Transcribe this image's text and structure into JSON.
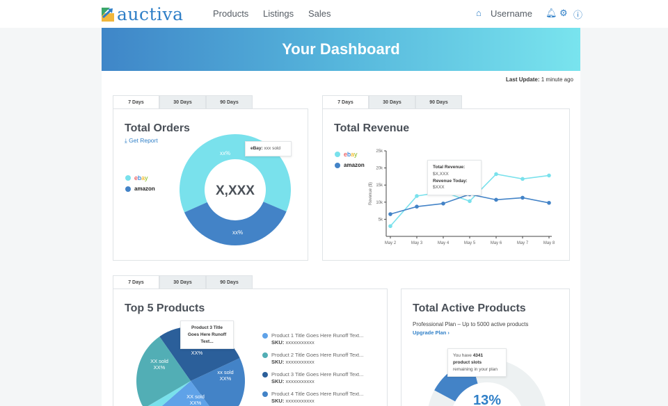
{
  "header": {
    "logo": "auctiva",
    "nav": [
      "Products",
      "Listings",
      "Sales"
    ],
    "username": "Username",
    "icons": [
      "home-icon",
      "bell-icon",
      "gear-icon",
      "help-icon"
    ]
  },
  "hero": {
    "title": "Your Dashboard"
  },
  "last_update": {
    "label": "Last Update:",
    "value": "1 minute ago"
  },
  "colors": {
    "ebay": "#79e1ec",
    "amazon": "#4383c7",
    "accent": "#2f7fc7"
  },
  "tabs": [
    "7 Days",
    "30 Days",
    "90 Days"
  ],
  "total_orders": {
    "title": "Total Orders",
    "report_link": "Get Report",
    "center_value": "X,XXX",
    "legend": [
      "ebay",
      "amazon"
    ],
    "slices": [
      {
        "name": "ebay",
        "label": "xx%",
        "color": "#79e1ec"
      },
      {
        "name": "amazon",
        "label": "xx%",
        "color": "#4383c7"
      }
    ],
    "tooltip": {
      "label": "eBay:",
      "value": "xxx sold"
    }
  },
  "total_revenue": {
    "title": "Total Revenue",
    "legend": [
      "ebay",
      "amazon"
    ],
    "tooltip": {
      "line1_label": "Total Revenue:",
      "line1_value": "$X,XXX",
      "line2_label": "Revenue Today:",
      "line2_value": "$XXX"
    }
  },
  "chart_data": {
    "type": "line",
    "ylabel": "Revenue ($)",
    "categories": [
      "May 2",
      "May 3",
      "May 4",
      "May 5",
      "May 6",
      "May 7",
      "May 8"
    ],
    "yticks": [
      "5k",
      "10k",
      "15k",
      "20k",
      "25k"
    ],
    "ylim": [
      0,
      25000
    ],
    "series": [
      {
        "name": "ebay",
        "color": "#79e1ec",
        "values": [
          3000,
          11800,
          13000,
          10300,
          18200,
          16800,
          17800
        ]
      },
      {
        "name": "amazon",
        "color": "#4383c7",
        "values": [
          6500,
          8700,
          9600,
          12300,
          10700,
          11300,
          9800
        ]
      }
    ]
  },
  "top5": {
    "title": "Top 5 Products",
    "tooltip": "Product 3 Title Goes Here Runoff Text...",
    "slices": [
      {
        "label1": "XX sold",
        "label2": "XX%",
        "color": "#2b5f9a"
      },
      {
        "label1": "xx sold",
        "label2": "XX%",
        "color": "#4383c7"
      },
      {
        "label1": "XX sold",
        "label2": "XX%",
        "color": "#5fa2e8"
      },
      {
        "label1": "",
        "label2": "",
        "color": "#79e1ec"
      },
      {
        "label1": "XX sold",
        "label2": "XX%",
        "color": "#52aeb5"
      }
    ],
    "products": [
      {
        "title": "Product 1 Title Goes Here Runoff Text...",
        "sku_label": "SKU:",
        "sku": "xxxxxxxxxxx",
        "color": "#5fa2e8"
      },
      {
        "title": "Product 2 Title Goes Here Runoff Text...",
        "sku_label": "SKU:",
        "sku": "xxxxxxxxxxx",
        "color": "#52aeb5"
      },
      {
        "title": "Product 3 Title Goes Here Runoff Text...",
        "sku_label": "SKU:",
        "sku": "xxxxxxxxxxx",
        "color": "#2b5f9a"
      },
      {
        "title": "Product 4 Title Goes Here Runoff Text...",
        "sku_label": "SKU:",
        "sku": "xxxxxxxxxxx",
        "color": "#4383c7"
      }
    ]
  },
  "active_products": {
    "title": "Total Active Products",
    "plan": "Professional Plan – Up to 5000 active products",
    "upgrade": "Upgrade Plan ›",
    "percent": "13%",
    "used_fraction": 0.13,
    "tooltip": {
      "pre": "You have",
      "count": "4341",
      "bold": "product slots",
      "post": "remaining in your plan"
    }
  }
}
